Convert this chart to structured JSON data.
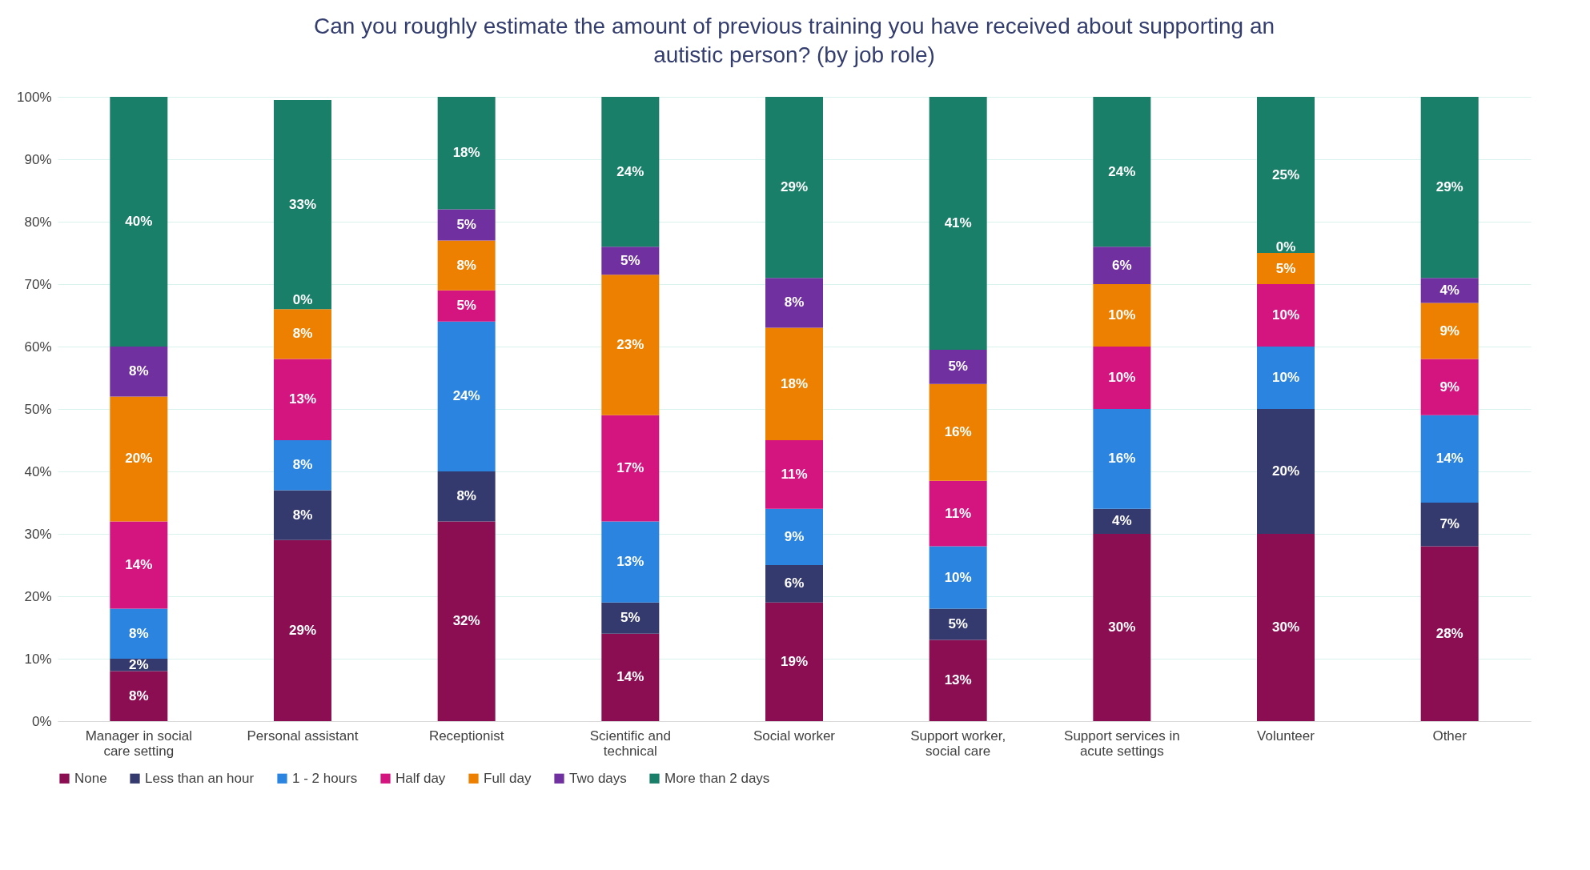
{
  "chart_data": {
    "type": "bar",
    "stacked": true,
    "title": "Can you roughly estimate the amount of previous training you have received about supporting an autistic person? (by job role)",
    "categories": [
      "Manager in social care setting",
      "Personal assistant",
      "Receptionist",
      "Scientific and technical",
      "Social worker",
      "Support worker, social care",
      "Support services in acute settings",
      "Volunteer",
      "Other"
    ],
    "series": [
      {
        "name": "None",
        "color": "#8b0d52",
        "values": [
          8,
          29,
          32,
          14,
          19,
          13,
          30,
          30,
          28
        ],
        "value_labels": [
          "8%",
          "29%",
          "32%",
          "14%",
          "19%",
          "13%",
          "30%",
          "30%",
          "28%"
        ]
      },
      {
        "name": "Less than an hour",
        "color": "#353a6e",
        "values": [
          2,
          8,
          8,
          5,
          6,
          5,
          4,
          20,
          7
        ],
        "value_labels": [
          "2%",
          "8%",
          "8%",
          "5%",
          "6%",
          "5%",
          "4%",
          "20%",
          "7%"
        ]
      },
      {
        "name": "1 - 2 hours",
        "color": "#2b85e0",
        "values": [
          8,
          8,
          24,
          13,
          9,
          10,
          16,
          10,
          14
        ],
        "value_labels": [
          "8%",
          "8%",
          "24%",
          "13%",
          "9%",
          "10%",
          "16%",
          "10%",
          "14%"
        ]
      },
      {
        "name": "Half day",
        "color": "#d4157f",
        "values": [
          14,
          13,
          5,
          17,
          11,
          10.5,
          10,
          10,
          9
        ],
        "value_labels": [
          "14%",
          "13%",
          "5%",
          "17%",
          "11%",
          "11%",
          "10%",
          "10%",
          "9%"
        ]
      },
      {
        "name": "Full day",
        "color": "#ee8000",
        "values": [
          20,
          8,
          8,
          22.5,
          18,
          15.5,
          10,
          5,
          9
        ],
        "value_labels": [
          "20%",
          "8%",
          "8%",
          "23%",
          "18%",
          "16%",
          "10%",
          "5%",
          "9%"
        ]
      },
      {
        "name": "Two days",
        "color": "#7030a0",
        "values": [
          8,
          0,
          5,
          4.5,
          8,
          5.5,
          6,
          0,
          4
        ],
        "value_labels": [
          "8%",
          null,
          "5%",
          "5%",
          "8%",
          "5%",
          "6%",
          null,
          "4%"
        ]
      },
      {
        "name": "More than 2 days",
        "color": "#1a7f68",
        "values": [
          40,
          33.5,
          18,
          24,
          29,
          40.5,
          24,
          25,
          29
        ],
        "value_labels": [
          "40%",
          "33%",
          "18%",
          "24%",
          "29%",
          "41%",
          "24%",
          "25%",
          "29%"
        ]
      }
    ],
    "ylim": [
      0,
      100
    ],
    "yticks": [
      {
        "value": 0,
        "label": "0%"
      },
      {
        "value": 10,
        "label": "10%"
      },
      {
        "value": 20,
        "label": "20%"
      },
      {
        "value": 30,
        "label": "30%"
      },
      {
        "value": 40,
        "label": "40%"
      },
      {
        "value": 50,
        "label": "50%"
      },
      {
        "value": 60,
        "label": "60%"
      },
      {
        "value": 70,
        "label": "70%"
      },
      {
        "value": 80,
        "label": "80%"
      },
      {
        "value": 90,
        "label": "90%"
      },
      {
        "value": 100,
        "label": "100%"
      }
    ],
    "grid": "y",
    "legend": "bottom",
    "annotations": [
      {
        "text": "0%",
        "x": "Personal assistant",
        "y": 66.5
      },
      {
        "text": "0%",
        "x": "Volunteer",
        "y": 75
      }
    ]
  }
}
